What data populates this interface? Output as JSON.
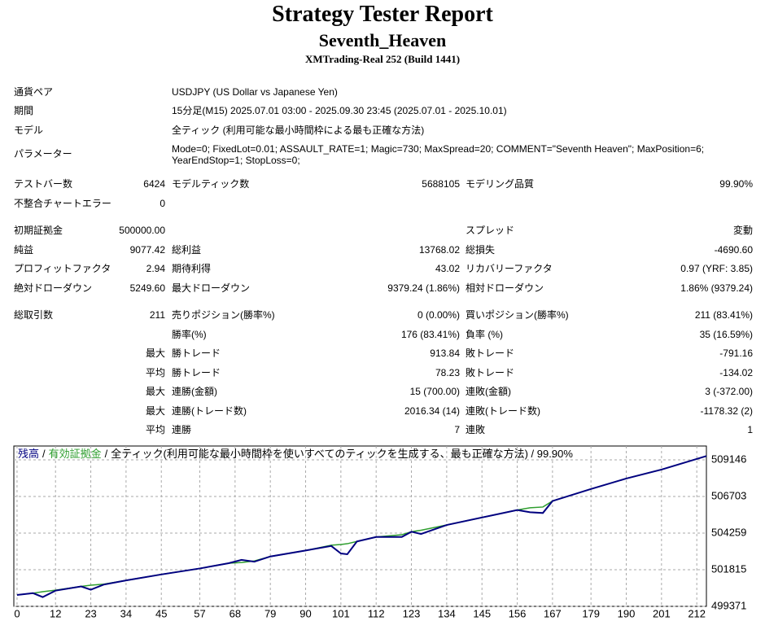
{
  "header": {
    "title": "Strategy Tester Report",
    "subtitle": "Seventh_Heaven",
    "server": "XMTrading-Real 252 (Build 1441)"
  },
  "settings": [
    {
      "label": "通貨ペア",
      "value": "USDJPY (US Dollar vs Japanese Yen)"
    },
    {
      "label": "期間",
      "value": "15分足(M15) 2025.07.01 03:00 - 2025.09.30 23:45 (2025.07.01 - 2025.10.01)"
    },
    {
      "label": "モデル",
      "value": "全ティック (利用可能な最小時間枠による最も正確な方法)"
    },
    {
      "label": "パラメーター",
      "value": "Mode=0; FixedLot=0.01; ASSAULT_RATE=1; Magic=730; MaxSpread=20; COMMENT=\"Seventh Heaven\"; MaxPosition=6; YearEndStop=1; StopLoss=0;"
    }
  ],
  "stats": [
    {
      "label1": "テストバー数",
      "value1": "6424",
      "label2": "モデルティック数",
      "value2": "5688105",
      "label3": "モデリング品質",
      "value3": "99.90%"
    },
    {
      "label1": "不整合チャートエラー",
      "value1": "0"
    },
    {
      "label1": "初期証拠金",
      "value1": "500000.00",
      "label3": "スプレッド",
      "value3": "変動"
    },
    {
      "label1": "純益",
      "value1": "9077.42",
      "label2": "総利益",
      "value2": "13768.02",
      "label3": "総損失",
      "value3": "-4690.60"
    },
    {
      "label1": "プロフィットファクタ",
      "value1": "2.94",
      "label2": "期待利得",
      "value2": "43.02",
      "label3": "リカバリーファクタ",
      "value3": "0.97 (YRF: 3.85)"
    },
    {
      "label1": "絶対ドローダウン",
      "value1": "5249.60",
      "label2": "最大ドローダウン",
      "value2": "9379.24 (1.86%)",
      "label3": "相対ドローダウン",
      "value3": "1.86% (9379.24)"
    },
    {
      "label1": "総取引数",
      "value1": "211",
      "label2": "売りポジション(勝率%)",
      "value2": "0 (0.00%)",
      "label3": "買いポジション(勝率%)",
      "value3": "211 (83.41%)"
    },
    {
      "label2": "勝率(%)",
      "value2": "176 (83.41%)",
      "label3": "負率 (%)",
      "value3": "35 (16.59%)"
    },
    {
      "value1": "最大",
      "label2": "勝トレード",
      "value2": "913.84",
      "label3": "敗トレード",
      "value3": "-791.16"
    },
    {
      "value1": "平均",
      "label2": "勝トレード",
      "value2": "78.23",
      "label3": "敗トレード",
      "value3": "-134.02"
    },
    {
      "value1": "最大",
      "label2": "連勝(金額)",
      "value2": "15 (700.00)",
      "label3": "連敗(金額)",
      "value3": "3 (-372.00)"
    },
    {
      "value1": "最大",
      "label2": "連勝(トレード数)",
      "value2": "2016.34 (14)",
      "label3": "連敗(トレード数)",
      "value3": "-1178.32 (2)"
    },
    {
      "value1": "平均",
      "label2": "連勝",
      "value2": "7",
      "label3": "連敗",
      "value3": "1"
    }
  ],
  "chart_data": {
    "type": "line",
    "legend_separator": "/",
    "legend_text": "全ティック(利用可能な最小時間枠を使いすべてのティックを生成する、最も正確な方法) / 99.90%",
    "x": [
      0,
      5,
      8,
      12,
      20,
      23,
      27,
      34,
      45,
      57,
      66,
      70,
      74,
      79,
      90,
      98,
      101,
      103,
      106,
      112,
      120,
      123,
      126,
      134,
      145,
      156,
      160,
      164,
      167,
      179,
      190,
      201,
      215
    ],
    "series": [
      {
        "name": "残高",
        "color": "#000080",
        "values": [
          500130,
          500250,
          499990,
          500420,
          500700,
          500480,
          500820,
          501100,
          501500,
          501900,
          502250,
          502470,
          502350,
          502700,
          503100,
          503400,
          502900,
          502850,
          503700,
          504000,
          504000,
          504350,
          504200,
          504800,
          505300,
          505800,
          505650,
          505600,
          506400,
          507200,
          507900,
          508500,
          509400
        ]
      },
      {
        "name": "有効証拠金",
        "color": "#2e9e2e",
        "values": [
          500130,
          500250,
          500350,
          500450,
          500700,
          500780,
          500850,
          501100,
          501500,
          501900,
          502250,
          502300,
          502400,
          502700,
          503100,
          503450,
          503500,
          503550,
          503700,
          504000,
          504150,
          504350,
          504450,
          504800,
          505300,
          505800,
          505950,
          506000,
          506400,
          507200,
          507900,
          508500,
          509400
        ]
      }
    ],
    "xlim": [
      -1,
      215
    ],
    "ylim": [
      499371,
      510070
    ],
    "xticks": [
      0,
      12,
      23,
      34,
      45,
      57,
      68,
      79,
      90,
      101,
      112,
      123,
      134,
      145,
      156,
      167,
      179,
      190,
      201,
      212
    ],
    "yticks": [
      499371,
      501815,
      504259,
      506703,
      509146
    ],
    "grid": true
  }
}
